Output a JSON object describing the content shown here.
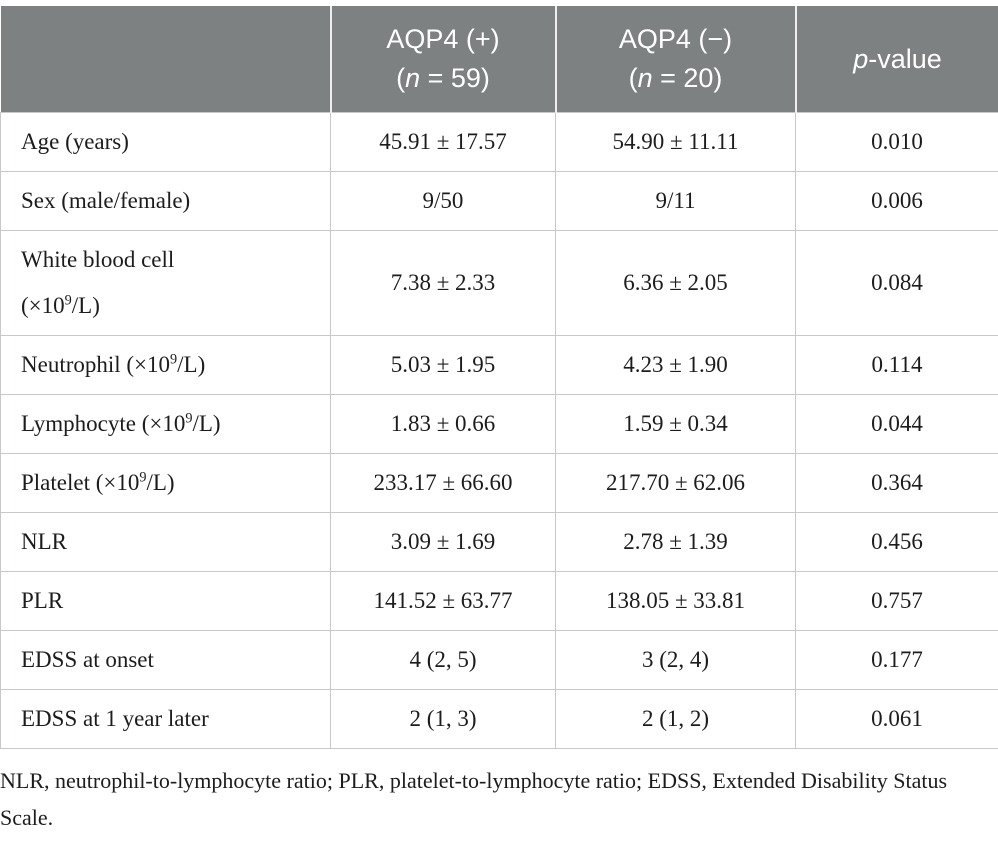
{
  "colors": {
    "header_bg": "#7e8182",
    "header_text": "#ffffff",
    "header_divider": "#eeeeee",
    "border": "#c7c9c9",
    "body_text": "#1c1c1c",
    "page_bg": "#ffffff"
  },
  "table": {
    "columns": {
      "empty": "",
      "aqp4_positive": {
        "line1": "AQP4 (+)",
        "n_pre": "(",
        "n_italic": "n",
        "n_post": " = 59)"
      },
      "aqp4_negative": {
        "line1": "AQP4 (−)",
        "n_pre": "(",
        "n_italic": "n",
        "n_post": " = 20)"
      },
      "p_value": {
        "italic": "p",
        "rest": "-value"
      }
    },
    "rows": [
      {
        "label_pre": "Age (years)",
        "label_sup": "",
        "label_post": "",
        "aqp4_positive": "45.91 ± 17.57",
        "aqp4_negative": "54.90 ± 11.11",
        "p_value": "0.010"
      },
      {
        "label_pre": "Sex (male/female)",
        "label_sup": "",
        "label_post": "",
        "aqp4_positive": "9/50",
        "aqp4_negative": "9/11",
        "p_value": "0.006"
      },
      {
        "label_pre": "White blood cell\n(×10",
        "label_sup": "9",
        "label_post": "/L)",
        "aqp4_positive": "7.38 ± 2.33",
        "aqp4_negative": "6.36 ± 2.05",
        "p_value": "0.084"
      },
      {
        "label_pre": "Neutrophil (×10",
        "label_sup": "9",
        "label_post": "/L)",
        "aqp4_positive": "5.03 ± 1.95",
        "aqp4_negative": "4.23 ± 1.90",
        "p_value": "0.114"
      },
      {
        "label_pre": "Lymphocyte (×10",
        "label_sup": "9",
        "label_post": "/L)",
        "aqp4_positive": "1.83 ± 0.66",
        "aqp4_negative": "1.59 ± 0.34",
        "p_value": "0.044"
      },
      {
        "label_pre": "Platelet (×10",
        "label_sup": "9",
        "label_post": "/L)",
        "aqp4_positive": "233.17 ± 66.60",
        "aqp4_negative": "217.70 ± 62.06",
        "p_value": "0.364"
      },
      {
        "label_pre": "NLR",
        "label_sup": "",
        "label_post": "",
        "aqp4_positive": "3.09 ± 1.69",
        "aqp4_negative": "2.78 ± 1.39",
        "p_value": "0.456"
      },
      {
        "label_pre": "PLR",
        "label_sup": "",
        "label_post": "",
        "aqp4_positive": "141.52 ± 63.77",
        "aqp4_negative": "138.05 ± 33.81",
        "p_value": "0.757"
      },
      {
        "label_pre": "EDSS at onset",
        "label_sup": "",
        "label_post": "",
        "aqp4_positive": "4 (2, 5)",
        "aqp4_negative": "3 (2, 4)",
        "p_value": "0.177"
      },
      {
        "label_pre": "EDSS at 1 year later",
        "label_sup": "",
        "label_post": "",
        "aqp4_positive": "2 (1, 3)",
        "aqp4_negative": "2 (1, 2)",
        "p_value": "0.061"
      }
    ],
    "footnote": "NLR, neutrophil-to-lymphocyte ratio; PLR, platelet-to-lymphocyte ratio; EDSS, Extended Disability Status Scale."
  }
}
